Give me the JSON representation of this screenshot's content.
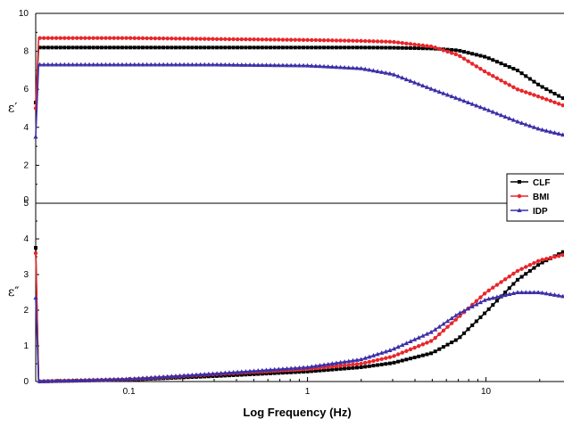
{
  "colors": {
    "CLF": "#000000",
    "BMI": "#e8262b",
    "IDP": "#3b2fa8"
  },
  "chart_data": [
    {
      "type": "line",
      "panel": "top",
      "ylabel": "ε′",
      "x_scale": "log",
      "xlim": [
        0.03,
        30
      ],
      "ylim": [
        0,
        10
      ],
      "yticks": [
        "0",
        "2",
        "4",
        "6",
        "8",
        "10"
      ],
      "legend": {
        "position": "bottom-right",
        "entries": [
          "CLF",
          "BMI",
          "IDP"
        ]
      },
      "series": [
        {
          "name": "CLF",
          "marker": "square",
          "x": [
            0.03,
            0.1,
            0.3,
            1,
            2,
            3,
            5,
            7,
            10,
            15,
            20,
            30
          ],
          "y": [
            8.2,
            8.2,
            8.2,
            8.2,
            8.2,
            8.19,
            8.15,
            8.05,
            7.7,
            7.0,
            6.2,
            5.3
          ]
        },
        {
          "name": "BMI",
          "marker": "circle",
          "x": [
            0.03,
            0.1,
            0.3,
            1,
            2,
            3,
            5,
            7,
            10,
            15,
            20,
            30
          ],
          "y": [
            8.7,
            8.7,
            8.65,
            8.6,
            8.55,
            8.5,
            8.25,
            7.8,
            6.9,
            6.0,
            5.6,
            5.0
          ]
        },
        {
          "name": "IDP",
          "marker": "triangle",
          "x": [
            0.03,
            0.1,
            0.3,
            1,
            2,
            3,
            5,
            7,
            10,
            15,
            20,
            30
          ],
          "y": [
            7.3,
            7.3,
            7.3,
            7.25,
            7.1,
            6.8,
            6.0,
            5.5,
            4.95,
            4.3,
            3.9,
            3.5
          ]
        }
      ]
    },
    {
      "type": "line",
      "panel": "bottom",
      "ylabel": "ε″",
      "xlabel": "Log Frequency (Hz)",
      "x_scale": "log",
      "xlim": [
        0.03,
        30
      ],
      "ylim": [
        0,
        5
      ],
      "yticks": [
        "0",
        "1",
        "2",
        "3",
        "4",
        "5"
      ],
      "xticks": [
        0.1,
        1,
        10
      ],
      "xtick_labels": [
        "0.1",
        "1",
        "10"
      ],
      "series": [
        {
          "name": "CLF",
          "marker": "square",
          "x": [
            0.03,
            0.1,
            0.3,
            1,
            2,
            3,
            5,
            7,
            10,
            15,
            20,
            30
          ],
          "y": [
            0.0,
            0.05,
            0.15,
            0.28,
            0.4,
            0.52,
            0.8,
            1.2,
            1.95,
            2.85,
            3.3,
            3.75
          ]
        },
        {
          "name": "BMI",
          "marker": "circle",
          "x": [
            0.03,
            0.1,
            0.3,
            1,
            2,
            3,
            5,
            7,
            10,
            15,
            20,
            30
          ],
          "y": [
            0.0,
            0.06,
            0.2,
            0.35,
            0.5,
            0.7,
            1.15,
            1.8,
            2.5,
            3.1,
            3.4,
            3.6
          ]
        },
        {
          "name": "IDP",
          "marker": "triangle",
          "x": [
            0.03,
            0.1,
            0.3,
            1,
            2,
            3,
            5,
            7,
            10,
            15,
            20,
            30
          ],
          "y": [
            0.0,
            0.07,
            0.22,
            0.4,
            0.62,
            0.9,
            1.4,
            1.9,
            2.3,
            2.5,
            2.5,
            2.35
          ]
        }
      ]
    }
  ]
}
